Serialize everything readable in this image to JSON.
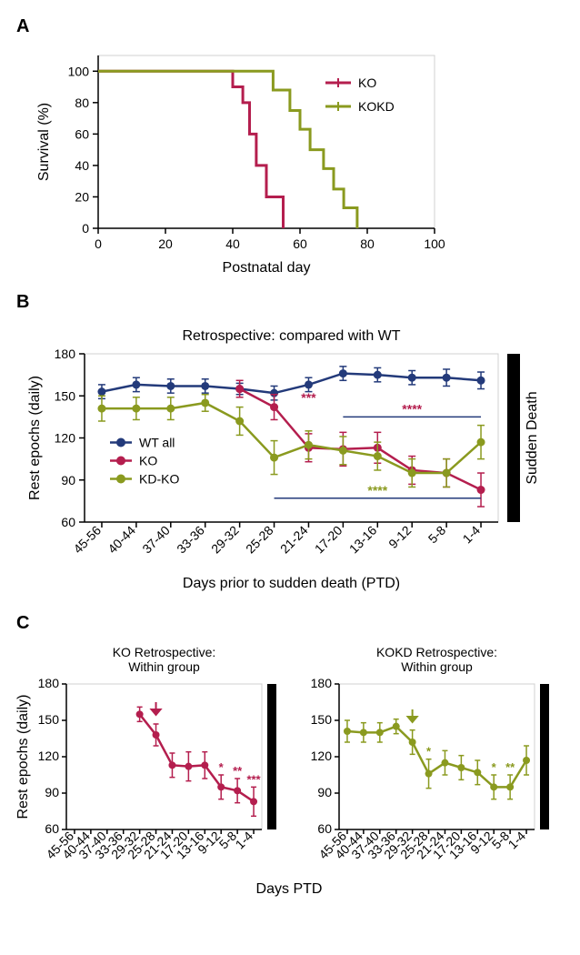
{
  "figure": {
    "colors": {
      "KO": "#b41e4e",
      "KOKD": "#8a9a1f",
      "WT": "#233a7a",
      "black": "#000000",
      "gray_grid": "#d0d0d0"
    },
    "panelA": {
      "label": "A",
      "type": "line",
      "survival": {
        "x_title": "Postnatal day",
        "y_title": "Survival (%)",
        "xlim": [
          0,
          100
        ],
        "ylim": [
          0,
          110
        ],
        "xticks": [
          0,
          20,
          40,
          60,
          80,
          100
        ],
        "yticks": [
          0,
          20,
          40,
          60,
          80,
          100
        ],
        "legend": {
          "items": [
            {
              "label": "KO",
              "color": "#b41e4e"
            },
            {
              "label": "KOKD",
              "color": "#8a9a1f"
            }
          ]
        },
        "series": [
          {
            "name": "KO",
            "color": "#b41e4e",
            "line_width": 3,
            "points": [
              [
                0,
                100
              ],
              [
                40,
                100
              ],
              [
                40,
                90
              ],
              [
                43,
                90
              ],
              [
                43,
                80
              ],
              [
                45,
                80
              ],
              [
                45,
                60
              ],
              [
                47,
                60
              ],
              [
                47,
                40
              ],
              [
                50,
                40
              ],
              [
                50,
                20
              ],
              [
                55,
                20
              ],
              [
                55,
                0
              ]
            ]
          },
          {
            "name": "KOKD",
            "color": "#8a9a1f",
            "line_width": 3,
            "points": [
              [
                0,
                100
              ],
              [
                52,
                100
              ],
              [
                52,
                88
              ],
              [
                57,
                88
              ],
              [
                57,
                75
              ],
              [
                60,
                75
              ],
              [
                60,
                63
              ],
              [
                63,
                63
              ],
              [
                63,
                50
              ],
              [
                67,
                50
              ],
              [
                67,
                38
              ],
              [
                70,
                38
              ],
              [
                70,
                25
              ],
              [
                73,
                25
              ],
              [
                73,
                13
              ],
              [
                77,
                13
              ],
              [
                77,
                0
              ]
            ]
          }
        ]
      }
    },
    "panelB": {
      "label": "B",
      "type": "line",
      "title": "Retrospective: compared with WT",
      "side_label": "Sudden Death",
      "x_title": "Days prior to sudden death (PTD)",
      "y_title": "Rest epochs (daily)",
      "x_categories": [
        "45-56",
        "40-44",
        "37-40",
        "33-36",
        "29-32",
        "25-28",
        "21-24",
        "17-20",
        "13-16",
        "9-12",
        "5-8",
        "1-4"
      ],
      "ylim": [
        60,
        180
      ],
      "yticks": [
        60,
        90,
        120,
        150,
        180
      ],
      "legend": {
        "items": [
          {
            "label": "WT all",
            "color": "#233a7a"
          },
          {
            "label": "KO",
            "color": "#b41e4e"
          },
          {
            "label": "KD-KO",
            "color": "#8a9a1f"
          }
        ]
      },
      "series": [
        {
          "name": "WT all",
          "color": "#233a7a",
          "values": [
            153,
            158,
            157,
            157,
            155,
            152,
            158,
            166,
            165,
            163,
            163,
            161
          ],
          "err": [
            5,
            5,
            5,
            5,
            4,
            5,
            5,
            5,
            5,
            5,
            6,
            6
          ]
        },
        {
          "name": "KO",
          "color": "#b41e4e",
          "values": [
            null,
            null,
            null,
            null,
            155,
            142,
            113,
            112,
            113,
            97,
            95,
            83
          ],
          "err": [
            null,
            null,
            null,
            null,
            6,
            9,
            10,
            12,
            11,
            10,
            10,
            12
          ]
        },
        {
          "name": "KD-KO",
          "color": "#8a9a1f",
          "values": [
            141,
            141,
            141,
            145,
            132,
            106,
            115,
            111,
            107,
            95,
            95,
            117
          ],
          "err": [
            9,
            8,
            8,
            6,
            10,
            12,
            10,
            10,
            10,
            10,
            10,
            12
          ]
        }
      ],
      "sig_bars": [
        {
          "color": "#b41e4e",
          "label": "***",
          "x_from": 6,
          "x_to": 6,
          "y": 143
        },
        {
          "color": "#b41e4e",
          "label": "****",
          "x_from": 7,
          "x_to": 11,
          "y": 135,
          "bar": true
        },
        {
          "color": "#8a9a1f",
          "label": "****",
          "x_from": 5,
          "x_to": 11,
          "y": 77,
          "bar": true
        }
      ]
    },
    "panelC": {
      "label": "C",
      "x_title": "Days PTD",
      "y_title": "Rest epochs (daily)",
      "x_categories": [
        "45-56",
        "40-44",
        "37-40",
        "33-36",
        "29-32",
        "25-28",
        "21-24",
        "17-20",
        "13-16",
        "9-12",
        "5-8",
        "1-4"
      ],
      "left": {
        "title": "KO Retrospective:\nWithin group",
        "color": "#b41e4e",
        "ylim": [
          60,
          180
        ],
        "yticks": [
          60,
          90,
          120,
          150,
          180
        ],
        "values": [
          null,
          null,
          null,
          null,
          155,
          138,
          113,
          112,
          113,
          95,
          92,
          83
        ],
        "err": [
          null,
          null,
          null,
          null,
          6,
          9,
          10,
          12,
          11,
          10,
          10,
          12
        ],
        "arrow_at": 5,
        "sig": [
          {
            "x": 9,
            "label": "*"
          },
          {
            "x": 10,
            "label": "**"
          },
          {
            "x": 11,
            "label": "***"
          }
        ]
      },
      "right": {
        "title": "KOKD Retrospective:\nWithin group",
        "color": "#8a9a1f",
        "ylim": [
          60,
          180
        ],
        "yticks": [
          60,
          90,
          120,
          150,
          180
        ],
        "values": [
          141,
          140,
          140,
          145,
          132,
          106,
          115,
          111,
          107,
          95,
          95,
          117
        ],
        "err": [
          9,
          8,
          8,
          6,
          10,
          12,
          10,
          10,
          10,
          10,
          10,
          12
        ],
        "arrow_at": 4,
        "sig": [
          {
            "x": 5,
            "label": "*"
          },
          {
            "x": 9,
            "label": "*"
          },
          {
            "x": 10,
            "label": "**"
          }
        ]
      }
    }
  }
}
